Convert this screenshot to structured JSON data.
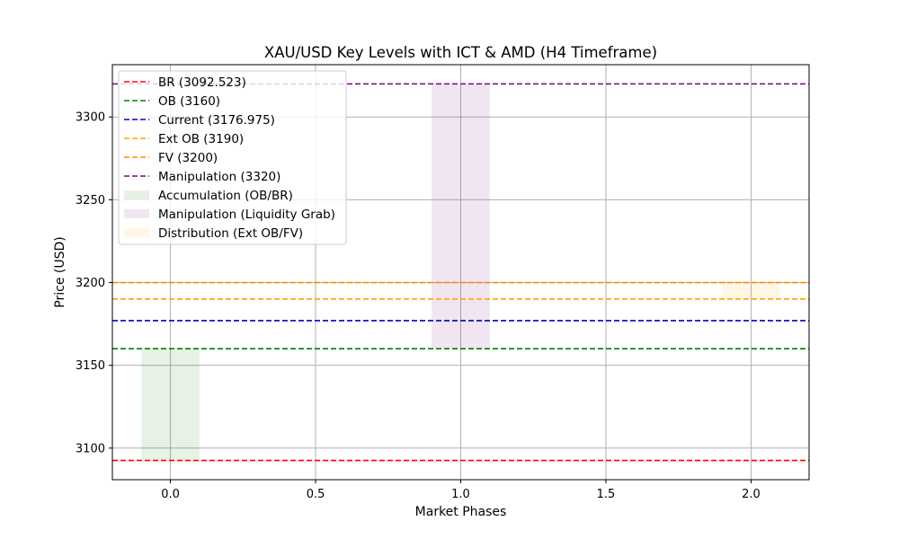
{
  "chart_data": {
    "type": "line",
    "title": "XAU/USD Key Levels with ICT & AMD (H4 Timeframe)",
    "xlabel": "Market Phases",
    "ylabel": "Price (USD)",
    "xlim": [
      -0.2,
      2.2
    ],
    "ylim": [
      3080.9,
      3331.6
    ],
    "xticks": [
      0.0,
      0.5,
      1.0,
      1.5,
      2.0
    ],
    "xtick_labels": [
      "0.0",
      "0.5",
      "1.0",
      "1.5",
      "2.0"
    ],
    "yticks": [
      3100,
      3150,
      3200,
      3250,
      3300
    ],
    "ytick_labels": [
      "3100",
      "3150",
      "3200",
      "3250",
      "3300"
    ],
    "grid": true,
    "legend_position": "top-left",
    "levels": [
      {
        "name": "BR (3092.523)",
        "value": 3092.523,
        "color": "#ff0000",
        "style": "dashed"
      },
      {
        "name": "OB (3160)",
        "value": 3160,
        "color": "#008000",
        "style": "dashed"
      },
      {
        "name": "Current (3176.975)",
        "value": 3176.975,
        "color": "#0000cd",
        "style": "dashed"
      },
      {
        "name": "Ext OB (3190)",
        "value": 3190,
        "color": "#ffa500",
        "style": "dashed"
      },
      {
        "name": "FV (3200)",
        "value": 3200,
        "color": "#ff8c00",
        "style": "dashed"
      },
      {
        "name": "Manipulation (3320)",
        "value": 3320,
        "color": "#800080",
        "style": "dashed"
      }
    ],
    "zones": [
      {
        "name": "Accumulation (OB/BR)",
        "x": [
          -0.1,
          0.1
        ],
        "y": [
          3092.523,
          3160
        ],
        "color": "#008000",
        "alpha": 0.1
      },
      {
        "name": "Manipulation (Liquidity Grab)",
        "x": [
          0.9,
          1.1
        ],
        "y": [
          3160,
          3320
        ],
        "color": "#800080",
        "alpha": 0.1
      },
      {
        "name": "Distribution (Ext OB/FV)",
        "x": [
          1.9,
          2.1
        ],
        "y": [
          3190,
          3200
        ],
        "color": "#ffa500",
        "alpha": 0.1
      }
    ]
  }
}
